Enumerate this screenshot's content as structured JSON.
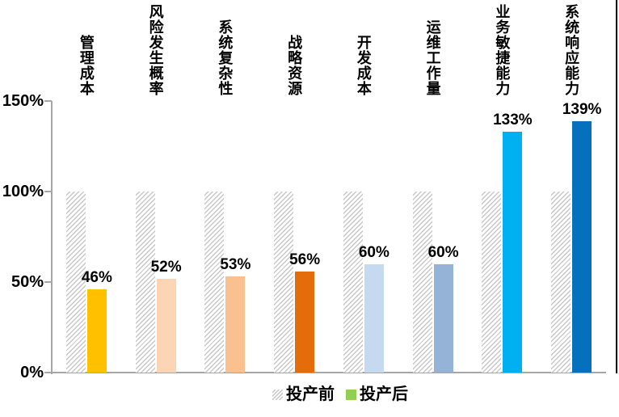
{
  "chart_data": {
    "type": "bar",
    "title": "",
    "categories": [
      "管理成本",
      "风险发生概率",
      "系统复杂性",
      "战略资源",
      "开发成本",
      "运维工作量",
      "业务敏捷能力",
      "系统响应能力"
    ],
    "series": [
      {
        "name": "投产前",
        "values": [
          100,
          100,
          100,
          100,
          100,
          100,
          100,
          100
        ],
        "fill": "hatched",
        "hatch_stripe_color": "#c8c8c8"
      },
      {
        "name": "投产后",
        "values": [
          46,
          52,
          53,
          56,
          60,
          60,
          133,
          139
        ],
        "data_labels": [
          "46%",
          "52%",
          "53%",
          "56%",
          "60%",
          "60%",
          "133%",
          "139%"
        ],
        "bar_colors": [
          "#FFC000",
          "#FCD5B4",
          "#FAC090",
          "#E46C0A",
          "#C5D9F1",
          "#95B3D7",
          "#00B0F0",
          "#0571BE"
        ],
        "legend_swatch_color": "#92D050"
      }
    ],
    "yticks": [
      {
        "label": "150%",
        "value": 150
      },
      {
        "label": "100%",
        "value": 100
      },
      {
        "label": "50%",
        "value": 50
      },
      {
        "label": "0%",
        "value": 0
      }
    ],
    "ylim": [
      0,
      150
    ],
    "grid": false,
    "legend_position": "bottom-center",
    "axis_color": "#a6a6a6",
    "text_color": "#000000"
  },
  "legend": {
    "items": [
      {
        "label": "投产前",
        "swatch": "hatched"
      },
      {
        "label": "投产后",
        "swatch": "#92D050"
      }
    ]
  }
}
